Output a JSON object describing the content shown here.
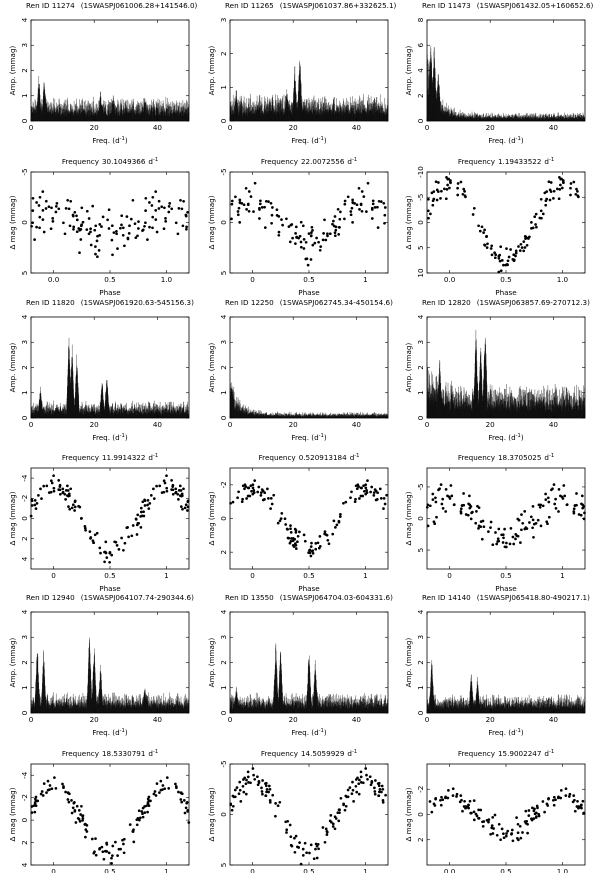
{
  "figure": {
    "labels": {
      "freq_axis": "Freq. (d",
      "freq_sup": "-1",
      "freq_close": ")",
      "amp_axis": "Amp. (mmag)",
      "phase_axis": "Phase",
      "dmag_axis": "Δ mag (mmag)",
      "frequency_prefix": "Frequency",
      "frequency_unit": "d",
      "frequency_unit_sup": "-1"
    },
    "colors": {
      "ink": "#000000",
      "background": "#ffffff"
    }
  },
  "chart_data": [
    {
      "type": "line",
      "panel": "periodogram",
      "star_id": "Ren ID 11274",
      "swasp_id": "(1SWASPJ061006.28+141546.0)",
      "x_range": [
        0,
        50
      ],
      "y_range": [
        0,
        4
      ],
      "x_ticks": [
        0,
        20,
        40
      ],
      "y_ticks": [
        0,
        1,
        2,
        3,
        4
      ],
      "xlabel": "Freq. (d-1)",
      "ylabel": "Amp. (mmag)",
      "noise_level": 0.7,
      "peaks": [
        [
          2.5,
          1.9
        ],
        [
          4.2,
          1.8
        ],
        [
          22,
          1.2
        ],
        [
          26,
          1.1
        ],
        [
          36,
          1.0
        ]
      ],
      "seed": 11
    },
    {
      "type": "scatter",
      "panel": "phase",
      "frequency_value": "30.1049366",
      "x_range": [
        -0.2,
        1.2
      ],
      "y_range": [
        5,
        -5
      ],
      "x_ticks": [
        0,
        0.5,
        1
      ],
      "x_tick_labels": [
        "0.0",
        "0.5",
        "1.0"
      ],
      "y_ticks": [
        -5,
        0,
        5
      ],
      "xlabel": "Phase",
      "ylabel": "Δ mag (mmag)",
      "amplitude": 1.2,
      "scatter": 2.0,
      "seed": 21
    },
    {
      "type": "line",
      "panel": "periodogram",
      "star_id": "Ren ID 11265",
      "swasp_id": "(1SWASPJ061037.86+332625.1)",
      "x_range": [
        0,
        50
      ],
      "y_range": [
        0,
        3
      ],
      "x_ticks": [
        0,
        20,
        40
      ],
      "y_ticks": [
        0,
        1,
        2,
        3
      ],
      "xlabel": "Freq. (d-1)",
      "ylabel": "Amp. (mmag)",
      "noise_level": 0.6,
      "peaks": [
        [
          20.5,
          1.7
        ],
        [
          22.1,
          2.1
        ],
        [
          18,
          1.0
        ],
        [
          2,
          1.0
        ]
      ],
      "seed": 12
    },
    {
      "type": "scatter",
      "panel": "phase",
      "frequency_value": "22.0072556",
      "x_range": [
        -0.2,
        1.2
      ],
      "y_range": [
        5,
        -5
      ],
      "x_ticks": [
        0,
        0.5,
        1
      ],
      "x_tick_labels": [
        "0",
        "0.5",
        "1"
      ],
      "y_ticks": [
        -5,
        0,
        5
      ],
      "xlabel": "Phase",
      "ylabel": "Δ mag (mmag)",
      "amplitude": 2.0,
      "scatter": 1.5,
      "seed": 22
    },
    {
      "type": "line",
      "panel": "periodogram",
      "star_id": "Ren ID 11473",
      "swasp_id": "(1SWASPJ061432.05+160652.6)",
      "x_range": [
        0,
        50
      ],
      "y_range": [
        0,
        8
      ],
      "x_ticks": [
        0,
        20,
        40
      ],
      "y_ticks": [
        0,
        2,
        4,
        6,
        8
      ],
      "xlabel": "Freq. (d-1)",
      "ylabel": "Amp. (mmag)",
      "noise_level": 0.5,
      "low_freq_boost": 4.5,
      "peaks": [
        [
          1.2,
          6.9
        ],
        [
          2.3,
          6.3
        ],
        [
          3.6,
          4.2
        ]
      ],
      "seed": 13
    },
    {
      "type": "scatter",
      "panel": "phase",
      "frequency_value": "1.19433522",
      "x_range": [
        -0.2,
        1.2
      ],
      "y_range": [
        10,
        -10
      ],
      "x_ticks": [
        0,
        0.5,
        1
      ],
      "x_tick_labels": [
        "0.0",
        "0.5",
        "1.0"
      ],
      "y_ticks": [
        -10,
        -5,
        0,
        5,
        10
      ],
      "xlabel": "Phase",
      "ylabel": "Δ mag (mmag)",
      "amplitude": 7.5,
      "scatter": 1.8,
      "seed": 23
    },
    {
      "type": "line",
      "panel": "periodogram",
      "star_id": "Ren ID 11820",
      "swasp_id": "(1SWASPJ061920.63-545156.3)",
      "x_range": [
        0,
        50
      ],
      "y_range": [
        0,
        4
      ],
      "x_ticks": [
        0,
        20,
        40
      ],
      "y_ticks": [
        0,
        1,
        2,
        3,
        4
      ],
      "xlabel": "Freq. (d-1)",
      "ylabel": "Amp. (mmag)",
      "noise_level": 0.5,
      "peaks": [
        [
          12,
          3.4
        ],
        [
          13,
          3.0
        ],
        [
          14.5,
          2.6
        ],
        [
          24,
          1.9
        ],
        [
          22.5,
          1.6
        ],
        [
          3,
          1.3
        ]
      ],
      "seed": 14
    },
    {
      "type": "scatter",
      "panel": "phase",
      "frequency_value": "11.9914322",
      "x_range": [
        -0.2,
        1.2
      ],
      "y_range": [
        5,
        -5
      ],
      "x_ticks": [
        0,
        0.5,
        1
      ],
      "x_tick_labels": [
        "0",
        "0.5",
        "1"
      ],
      "y_ticks": [
        -4,
        -2,
        0,
        2,
        4
      ],
      "xlabel": "Phase",
      "ylabel": "Δ mag (mmag)",
      "amplitude": 3.3,
      "scatter": 0.9,
      "seed": 24
    },
    {
      "type": "line",
      "panel": "periodogram",
      "star_id": "Ren ID 12250",
      "swasp_id": "(1SWASPJ062745.34-450154.6)",
      "x_range": [
        0,
        50
      ],
      "y_range": [
        0,
        4
      ],
      "x_ticks": [
        0,
        20,
        40
      ],
      "y_ticks": [
        0,
        1,
        2,
        3,
        4
      ],
      "xlabel": "Freq. (d-1)",
      "ylabel": "Amp. (mmag)",
      "noise_level": 0.18,
      "low_freq_boost": 1.1,
      "peaks": [
        [
          0.6,
          1.6
        ]
      ],
      "seed": 15
    },
    {
      "type": "scatter",
      "panel": "phase",
      "frequency_value": "0.520913184",
      "x_range": [
        -0.2,
        1.2
      ],
      "y_range": [
        3,
        -3
      ],
      "x_ticks": [
        0,
        0.5,
        1
      ],
      "x_tick_labels": [
        "0",
        "0.5",
        "1"
      ],
      "y_ticks": [
        -2,
        0,
        2
      ],
      "xlabel": "Phase",
      "ylabel": "Δ mag (mmag)",
      "amplitude": 1.8,
      "scatter": 0.55,
      "seed": 25
    },
    {
      "type": "line",
      "panel": "periodogram",
      "star_id": "Ren ID 12820",
      "swasp_id": "(1SWASPJ063857.69-270712.3)",
      "x_range": [
        0,
        50
      ],
      "y_range": [
        0,
        4
      ],
      "x_ticks": [
        0,
        20,
        40
      ],
      "y_ticks": [
        0,
        1,
        2,
        3,
        4
      ],
      "xlabel": "Freq. (d-1)",
      "ylabel": "Amp. (mmag)",
      "noise_level": 1.0,
      "low_freq_boost": 1.0,
      "peaks": [
        [
          15.5,
          3.6
        ],
        [
          18.4,
          3.9
        ],
        [
          17,
          3.0
        ],
        [
          4,
          2.5
        ]
      ],
      "seed": 16
    },
    {
      "type": "scatter",
      "panel": "phase",
      "frequency_value": "18.3705025",
      "x_range": [
        -0.2,
        1.2
      ],
      "y_range": [
        8,
        -8
      ],
      "x_ticks": [
        0,
        0.5,
        1
      ],
      "x_tick_labels": [
        "0",
        "0.5",
        "1"
      ],
      "y_ticks": [
        -5,
        0,
        5
      ],
      "xlabel": "Phase",
      "ylabel": "Δ mag (mmag)",
      "amplitude": 3.0,
      "scatter": 2.3,
      "seed": 26
    },
    {
      "type": "line",
      "panel": "periodogram",
      "star_id": "Ren ID 12940",
      "swasp_id": "(1SWASPJ064107.74-290344.6)",
      "x_range": [
        0,
        50
      ],
      "y_range": [
        0,
        4
      ],
      "x_ticks": [
        0,
        20,
        40
      ],
      "y_ticks": [
        0,
        1,
        2,
        3,
        4
      ],
      "xlabel": "Freq. (d-1)",
      "ylabel": "Amp. (mmag)",
      "noise_level": 0.6,
      "peaks": [
        [
          2,
          2.9
        ],
        [
          4,
          2.6
        ],
        [
          18.5,
          3.3
        ],
        [
          20,
          2.8
        ],
        [
          22,
          2.0
        ],
        [
          36,
          1.1
        ]
      ],
      "seed": 17
    },
    {
      "type": "scatter",
      "panel": "phase",
      "frequency_value": "18.5330791",
      "x_range": [
        -0.2,
        1.2
      ],
      "y_range": [
        4,
        -5
      ],
      "x_ticks": [
        0,
        0.5,
        1
      ],
      "x_tick_labels": [
        "0",
        "0.5",
        "1"
      ],
      "y_ticks": [
        -4,
        -2,
        0,
        2,
        4
      ],
      "xlabel": "Phase",
      "ylabel": "Δ mag (mmag)",
      "amplitude": 3.0,
      "scatter": 0.8,
      "seed": 27
    },
    {
      "type": "line",
      "panel": "periodogram",
      "star_id": "Ren ID 13550",
      "swasp_id": "(1SWASPJ064704.03-604331.6)",
      "x_range": [
        0,
        50
      ],
      "y_range": [
        0,
        4
      ],
      "x_ticks": [
        0,
        20,
        40
      ],
      "y_ticks": [
        0,
        1,
        2,
        3,
        4
      ],
      "xlabel": "Freq. (d-1)",
      "ylabel": "Amp. (mmag)",
      "noise_level": 0.6,
      "peaks": [
        [
          14.5,
          3.1
        ],
        [
          16,
          2.8
        ],
        [
          25,
          2.6
        ],
        [
          27,
          2.2
        ],
        [
          2,
          1.1
        ]
      ],
      "seed": 18
    },
    {
      "type": "scatter",
      "panel": "phase",
      "frequency_value": "14.5059929",
      "x_range": [
        -0.2,
        1.2
      ],
      "y_range": [
        5,
        -5
      ],
      "x_ticks": [
        0,
        0.5,
        1
      ],
      "x_tick_labels": [
        "0",
        "0.5",
        "1"
      ],
      "y_ticks": [
        -5,
        0,
        5
      ],
      "xlabel": "Phase",
      "ylabel": "Δ mag (mmag)",
      "amplitude": 3.5,
      "scatter": 1.0,
      "seed": 28
    },
    {
      "type": "line",
      "panel": "periodogram",
      "star_id": "Ren ID 14140",
      "swasp_id": "(1SWASPJ065418.80-490217.1)",
      "x_range": [
        0,
        50
      ],
      "y_range": [
        0,
        4
      ],
      "x_ticks": [
        0,
        20,
        40
      ],
      "y_ticks": [
        0,
        1,
        2,
        3,
        4
      ],
      "xlabel": "Freq. (d-1)",
      "ylabel": "Amp. (mmag)",
      "noise_level": 0.55,
      "peaks": [
        [
          1.5,
          2.3
        ],
        [
          14,
          1.6
        ],
        [
          16,
          1.5
        ]
      ],
      "seed": 19
    },
    {
      "type": "scatter",
      "panel": "phase",
      "frequency_value": "15.9002247",
      "x_range": [
        -0.2,
        1.2
      ],
      "y_range": [
        4,
        -4
      ],
      "x_ticks": [
        0,
        0.5,
        1
      ],
      "x_tick_labels": [
        "0.0",
        "0.5",
        "1.0"
      ],
      "y_ticks": [
        -2,
        0,
        2
      ],
      "xlabel": "Phase",
      "ylabel": "Δ mag (mmag)",
      "amplitude": 1.5,
      "scatter": 0.75,
      "seed": 29
    }
  ]
}
